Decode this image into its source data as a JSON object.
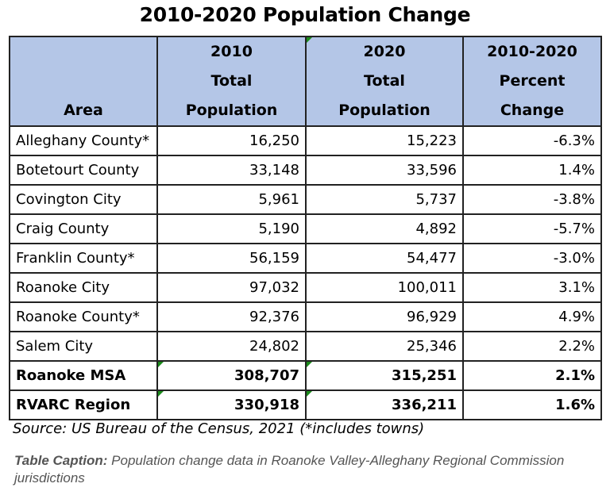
{
  "title": "2010-2020 Population Change",
  "table": {
    "headers": [
      [
        "Area"
      ],
      [
        "2010",
        "Total",
        "Population"
      ],
      [
        "2020",
        "Total",
        "Population"
      ],
      [
        "2010-2020",
        "Percent",
        "Change"
      ]
    ],
    "rows": [
      {
        "area": "Alleghany County*",
        "pop2010": "16,250",
        "pop2020": "15,223",
        "change": "-6.3%",
        "bold": false
      },
      {
        "area": "Botetourt County",
        "pop2010": "33,148",
        "pop2020": "33,596",
        "change": "1.4%",
        "bold": false
      },
      {
        "area": "Covington City",
        "pop2010": "5,961",
        "pop2020": "5,737",
        "change": "-3.8%",
        "bold": false
      },
      {
        "area": "Craig County",
        "pop2010": "5,190",
        "pop2020": "4,892",
        "change": "-5.7%",
        "bold": false
      },
      {
        "area": "Franklin County*",
        "pop2010": "56,159",
        "pop2020": "54,477",
        "change": "-3.0%",
        "bold": false
      },
      {
        "area": "Roanoke City",
        "pop2010": "97,032",
        "pop2020": "100,011",
        "change": "3.1%",
        "bold": false
      },
      {
        "area": "Roanoke County*",
        "pop2010": "92,376",
        "pop2020": "96,929",
        "change": "4.9%",
        "bold": false
      },
      {
        "area": "Salem City",
        "pop2010": "24,802",
        "pop2020": "25,346",
        "change": "2.2%",
        "bold": false
      },
      {
        "area": "Roanoke MSA",
        "pop2010": "308,707",
        "pop2020": "315,251",
        "change": "2.1%",
        "bold": true
      },
      {
        "area": "RVARC Region",
        "pop2010": "330,918",
        "pop2020": "336,211",
        "change": "1.6%",
        "bold": true
      }
    ]
  },
  "source": "Source: US Bureau of the Census, 2021 (*includes towns)",
  "caption": {
    "label": "Table Caption:",
    "text": " Population change data in Roanoke Valley-Alleghany Regional Commission jurisdictions"
  }
}
